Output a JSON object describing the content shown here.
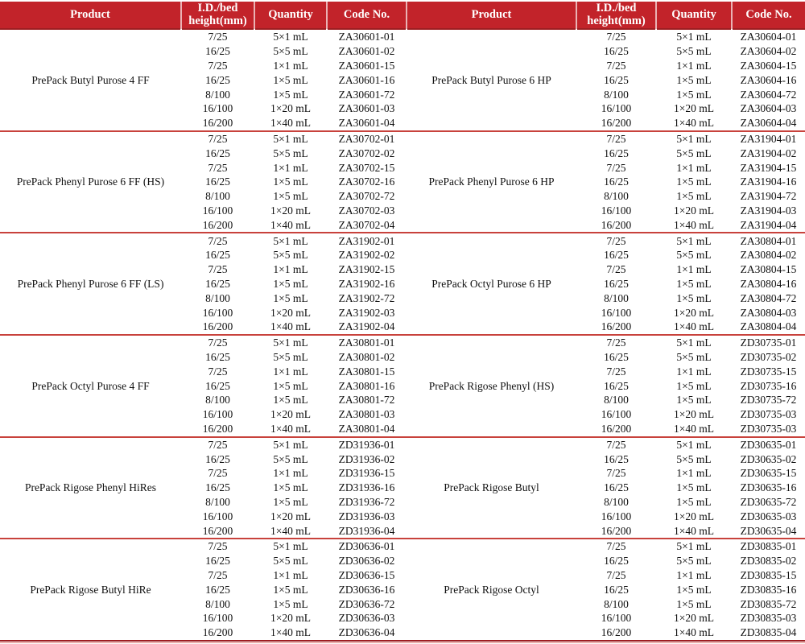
{
  "page": {
    "background": "#FFFFFF"
  },
  "table": {
    "columns": [
      "Product",
      "I.D./bed height(mm)",
      "Quantity",
      "Code No."
    ],
    "style": {
      "header_bg": "#C2232A",
      "header_text": "#FFFFFF",
      "separator": "#C8423C",
      "separator_light": "#E0827D",
      "strong_border": "#9E1D21",
      "body_text": "#111111"
    },
    "id_bed_heights": [
      "7/25",
      "16/25",
      "7/25",
      "16/25",
      "8/100",
      "16/100",
      "16/200"
    ],
    "quantities": [
      "5×1 mL",
      "5×5 mL",
      "1×1 mL",
      "1×5 mL",
      "1×5 mL",
      "1×20 mL",
      "1×40 mL"
    ],
    "groups": [
      {
        "left": {
          "product": "PrePack Butyl Purose 4 FF",
          "codes": [
            "ZA30601-01",
            "ZA30601-02",
            "ZA30601-15",
            "ZA30601-16",
            "ZA30601-72",
            "ZA30601-03",
            "ZA30601-04"
          ]
        },
        "right": {
          "product": "PrePack Butyl Purose 6 HP",
          "codes": [
            "ZA30604-01",
            "ZA30604-02",
            "ZA30604-15",
            "ZA30604-16",
            "ZA30604-72",
            "ZA30604-03",
            "ZA30604-04"
          ]
        }
      },
      {
        "left": {
          "product": "PrePack Phenyl Purose 6 FF (HS)",
          "codes": [
            "ZA30702-01",
            "ZA30702-02",
            "ZA30702-15",
            "ZA30702-16",
            "ZA30702-72",
            "ZA30702-03",
            "ZA30702-04"
          ]
        },
        "right": {
          "product": "PrePack Phenyl Purose 6 HP",
          "codes": [
            "ZA31904-01",
            "ZA31904-02",
            "ZA31904-15",
            "ZA31904-16",
            "ZA31904-72",
            "ZA31904-03",
            "ZA31904-04"
          ]
        }
      },
      {
        "left": {
          "product": "PrePack Phenyl Purose 6 FF (LS)",
          "codes": [
            "ZA31902-01",
            "ZA31902-02",
            "ZA31902-15",
            "ZA31902-16",
            "ZA31902-72",
            "ZA31902-03",
            "ZA31902-04"
          ]
        },
        "right": {
          "product": "PrePack Octyl Purose 6 HP",
          "codes": [
            "ZA30804-01",
            "ZA30804-02",
            "ZA30804-15",
            "ZA30804-16",
            "ZA30804-72",
            "ZA30804-03",
            "ZA30804-04"
          ]
        }
      },
      {
        "left": {
          "product": "PrePack Octyl Purose 4 FF",
          "codes": [
            "ZA30801-01",
            "ZA30801-02",
            "ZA30801-15",
            "ZA30801-16",
            "ZA30801-72",
            "ZA30801-03",
            "ZA30801-04"
          ]
        },
        "right": {
          "product": "PrePack Rigose Phenyl (HS)",
          "codes": [
            "ZD30735-01",
            "ZD30735-02",
            "ZD30735-15",
            "ZD30735-16",
            "ZD30735-72",
            "ZD30735-03",
            "ZD30735-03"
          ]
        }
      },
      {
        "left": {
          "product": "PrePack Rigose Phenyl HiRes",
          "codes": [
            "ZD31936-01",
            "ZD31936-02",
            "ZD31936-15",
            "ZD31936-16",
            "ZD31936-72",
            "ZD31936-03",
            "ZD31936-04"
          ]
        },
        "right": {
          "product": "PrePack Rigose Butyl",
          "codes": [
            "ZD30635-01",
            "ZD30635-02",
            "ZD30635-15",
            "ZD30635-16",
            "ZD30635-72",
            "ZD30635-03",
            "ZD30635-04"
          ]
        }
      },
      {
        "left": {
          "product": "PrePack Rigose Butyl HiRe",
          "codes": [
            "ZD30636-01",
            "ZD30636-02",
            "ZD30636-15",
            "ZD30636-16",
            "ZD30636-72",
            "ZD30636-03",
            "ZD30636-04"
          ]
        },
        "right": {
          "product": "PrePack Rigose Octyl",
          "codes": [
            "ZD30835-01",
            "ZD30835-02",
            "ZD30835-15",
            "ZD30835-16",
            "ZD30835-72",
            "ZD30835-03",
            "ZD30835-04"
          ]
        }
      }
    ]
  }
}
